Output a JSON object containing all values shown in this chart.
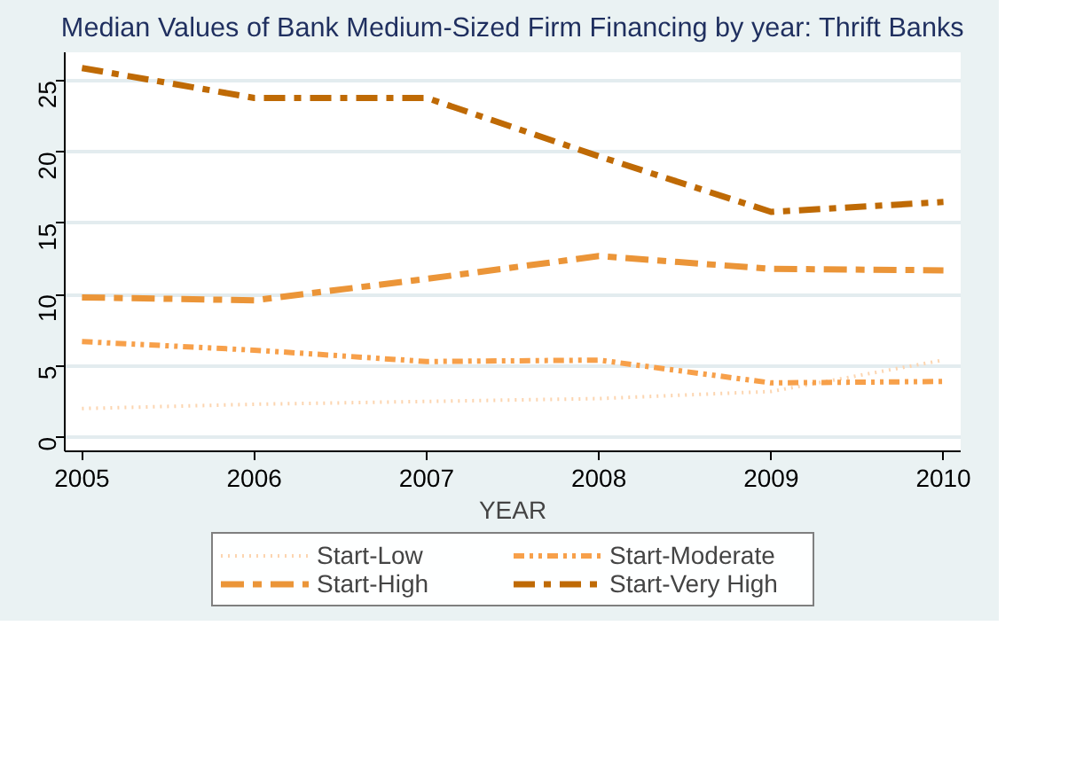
{
  "chart_data": {
    "type": "line",
    "title": "Median Values of Bank Medium-Sized Firm Financing by year: Thrift Banks",
    "xlabel": "YEAR",
    "x": [
      2005,
      2006,
      2007,
      2008,
      2009,
      2010
    ],
    "series": [
      {
        "name": "Start-Low",
        "color": "#fcd5b0",
        "line_style": "dotted",
        "values": [
          2.0,
          2.3,
          2.5,
          2.7,
          3.2,
          5.4
        ]
      },
      {
        "name": "Start-Moderate",
        "color": "#f7a04a",
        "line_style": "dashdot",
        "values": [
          6.7,
          6.1,
          5.3,
          5.4,
          3.8,
          3.9
        ]
      },
      {
        "name": "Start-High",
        "color": "#eb9538",
        "line_style": "longdashdot",
        "values": [
          9.8,
          9.6,
          11.1,
          12.7,
          11.8,
          11.7
        ]
      },
      {
        "name": "Start-Very High",
        "color": "#bf6a05",
        "line_style": "dashdotbold",
        "values": [
          25.9,
          23.8,
          23.8,
          19.7,
          15.8,
          16.5
        ]
      }
    ],
    "xlim": [
      2004.9,
      2010.1
    ],
    "ylim": [
      -1,
      27
    ],
    "xticks": [
      2005,
      2006,
      2007,
      2008,
      2009,
      2010
    ],
    "yticks": [
      0,
      5,
      10,
      15,
      20,
      25
    ],
    "grid": "y",
    "legend": "bottom",
    "marker": "none"
  }
}
